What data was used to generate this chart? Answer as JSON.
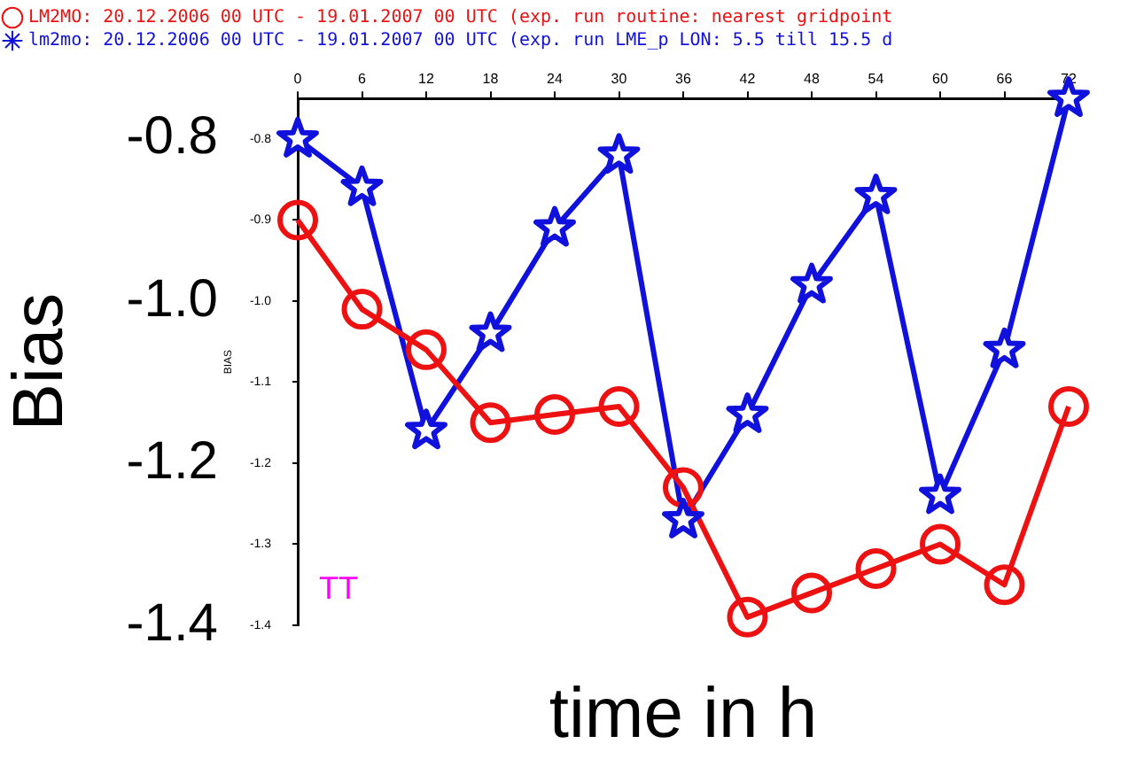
{
  "chart_data": {
    "type": "line",
    "xlabel": "time in h",
    "ylabel": "Bias",
    "y2label": "BIAS",
    "x": [
      0,
      6,
      12,
      18,
      24,
      30,
      36,
      42,
      48,
      54,
      60,
      66,
      72
    ],
    "xlim": [
      0,
      72
    ],
    "xticks": [
      0,
      6,
      12,
      18,
      24,
      30,
      36,
      42,
      48,
      54,
      60,
      66,
      72
    ],
    "ylim": [
      -1.4,
      -0.75
    ],
    "yticks": [
      {
        "value": -0.8,
        "label": "-0.8"
      },
      {
        "value": -1.0,
        "label": "-1.0"
      },
      {
        "value": -1.2,
        "label": "-1.2"
      },
      {
        "value": -1.4,
        "label": "-1.4"
      }
    ],
    "y2lim": [
      -1.4,
      -0.75
    ],
    "y2ticks": [
      {
        "value": -0.8,
        "label": "-0.8"
      },
      {
        "value": -0.9,
        "label": "-0.9"
      },
      {
        "value": -1.0,
        "label": "-1.0"
      },
      {
        "value": -1.1,
        "label": "-1.1"
      },
      {
        "value": -1.2,
        "label": "-1.2"
      },
      {
        "value": -1.3,
        "label": "-1.3"
      },
      {
        "value": -1.4,
        "label": "-1.4"
      }
    ],
    "grid": false,
    "legend": "top left",
    "line_style": "solid",
    "annotations": [
      "TT"
    ],
    "series": [
      {
        "name": "LM2MO: 20.12.2006 00 UTC - 19.01.2007 00 UTC (exp. run routine: nearest gridpoint",
        "color": "#ee1111",
        "marker": "circle",
        "values": [
          -0.9,
          -1.01,
          -1.06,
          -1.15,
          -1.14,
          -1.13,
          -1.23,
          -1.39,
          -1.36,
          -1.33,
          -1.3,
          -1.35,
          -1.13
        ]
      },
      {
        "name": "lm2mo: 20.12.2006 00 UTC - 19.01.2007 00 UTC (exp. run LME_p LON: 5.5 till 15.5 d",
        "color": "#1111dd",
        "marker": "star",
        "values": [
          -0.8,
          -0.86,
          -1.16,
          -1.04,
          -0.91,
          -0.82,
          -1.27,
          -1.14,
          -0.98,
          -0.87,
          -1.24,
          -1.06,
          -0.75
        ]
      }
    ]
  }
}
